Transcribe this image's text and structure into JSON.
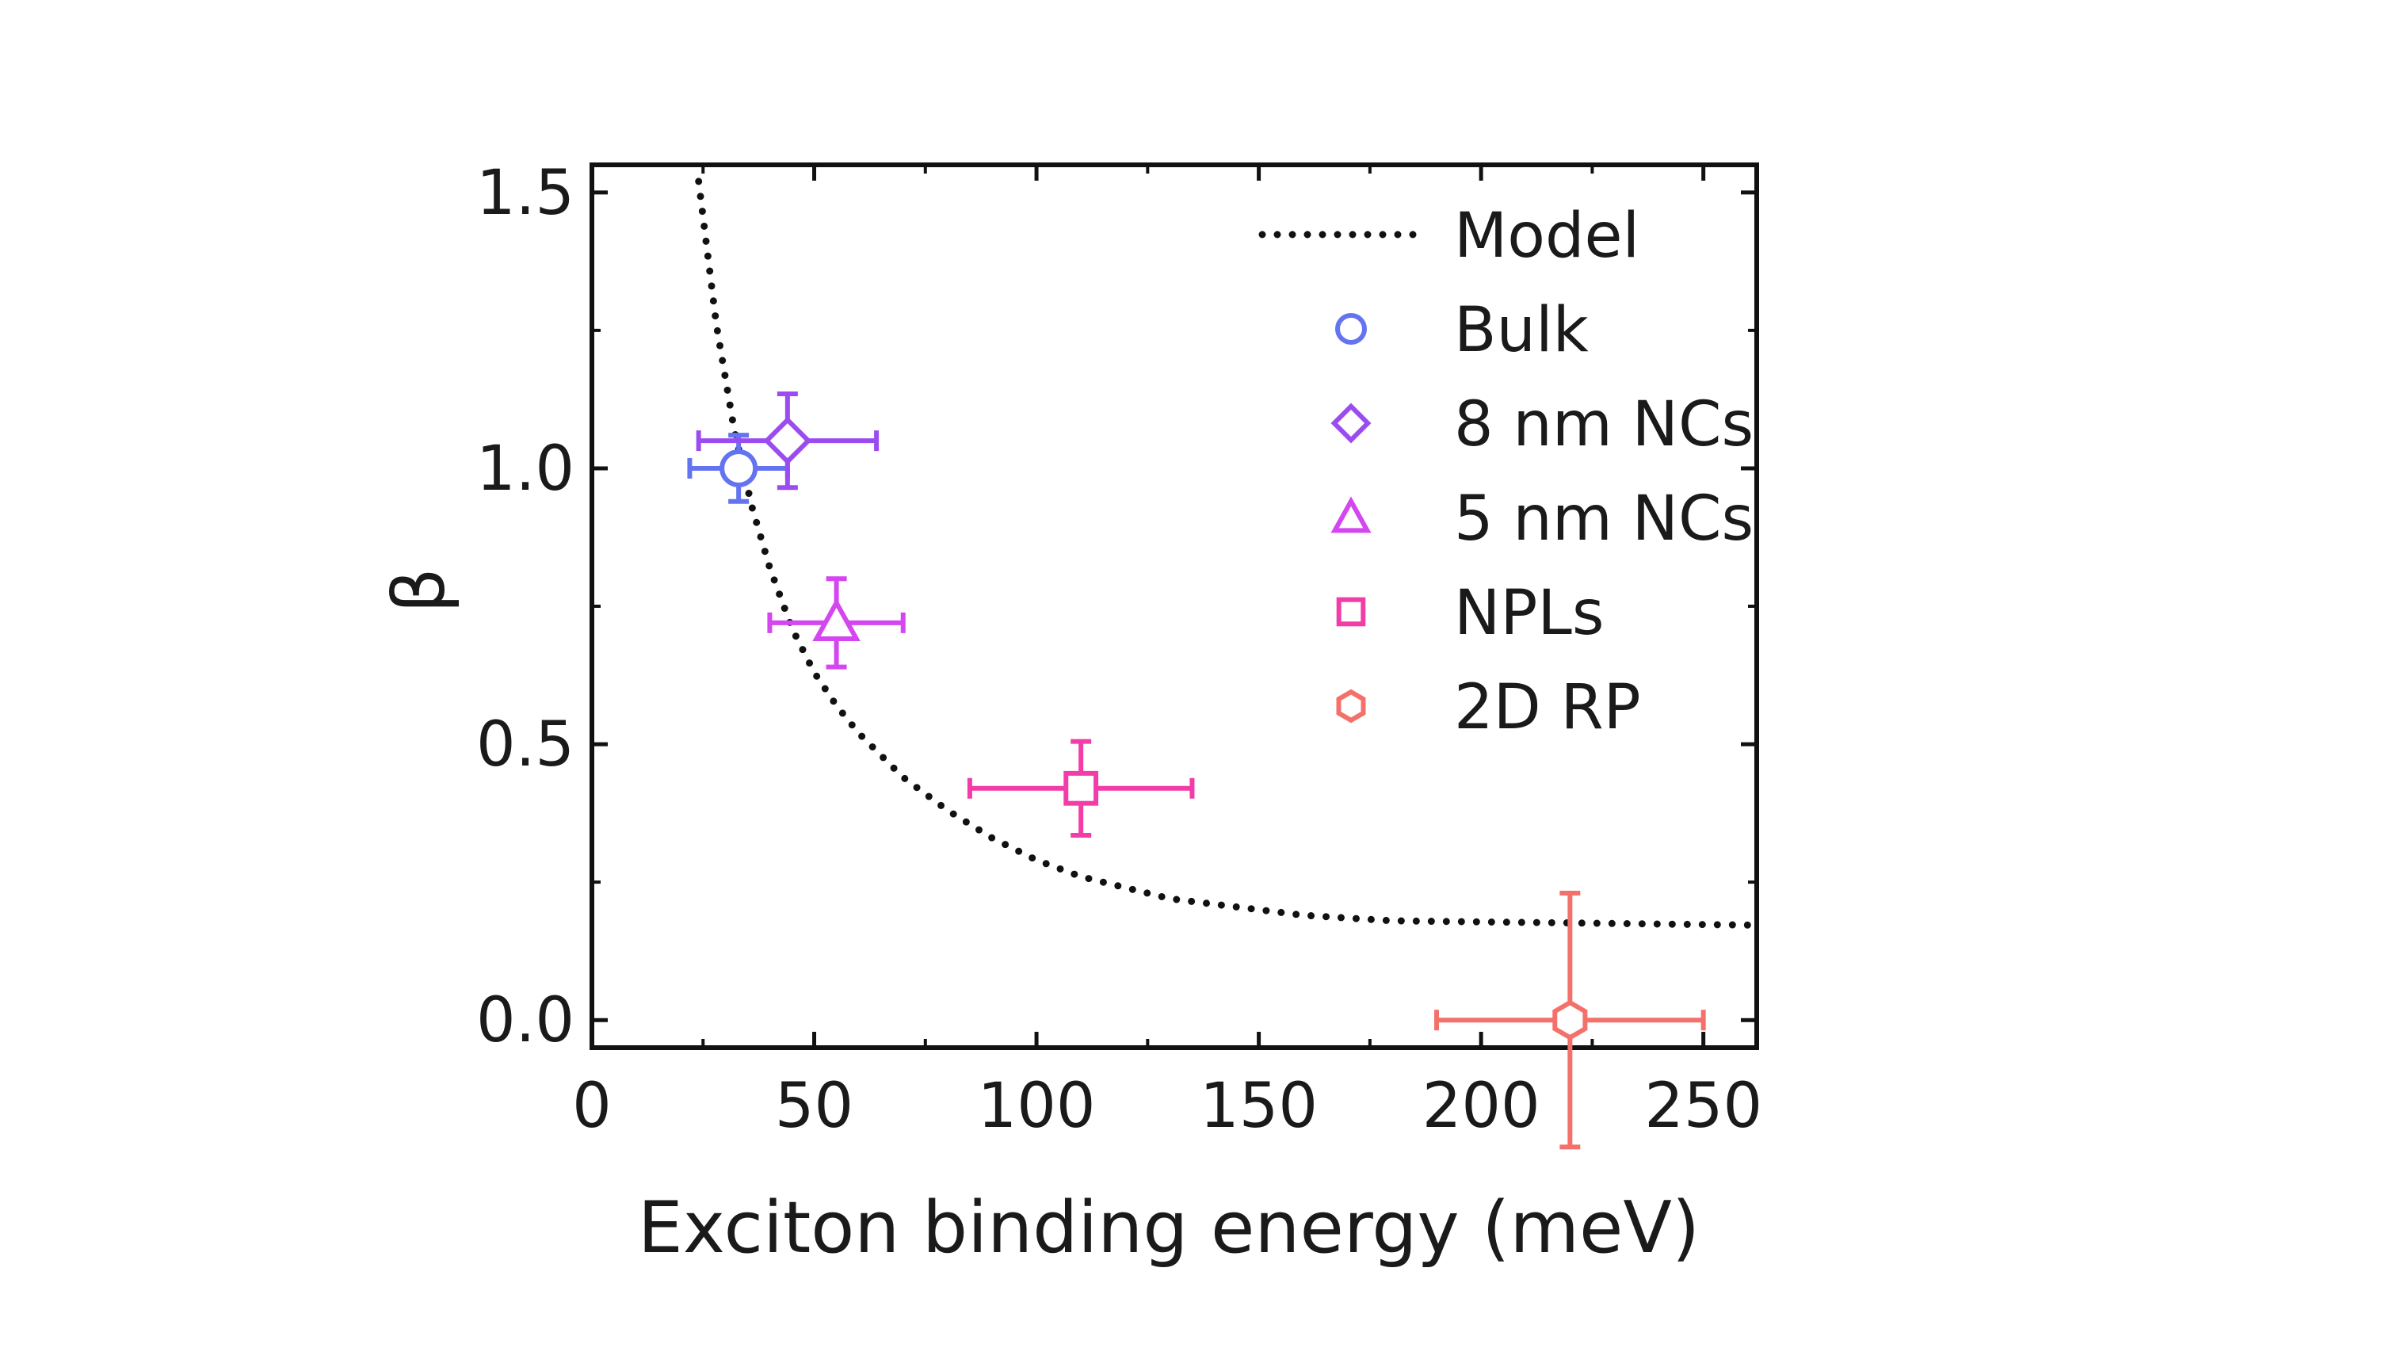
{
  "chart_data": {
    "type": "scatter",
    "title": "",
    "xlabel": "Exciton binding energy (meV)",
    "ylabel": "β",
    "xlim": [
      0,
      262
    ],
    "ylim": [
      -0.05,
      1.55
    ],
    "x_ticks": [
      0,
      50,
      100,
      150,
      200,
      250
    ],
    "x_tick_labels": [
      "0",
      "50",
      "100",
      "150",
      "200",
      "250"
    ],
    "y_ticks": [
      0.0,
      0.5,
      1.0,
      1.5
    ],
    "y_tick_labels": [
      "0.0",
      "0.5",
      "1.0",
      "1.5"
    ],
    "grid": false,
    "legend": {
      "placement": "top-right"
    },
    "model": {
      "name": "Model",
      "style": "dotted",
      "color": "#111111",
      "x": [
        24,
        28,
        32,
        36,
        40,
        45,
        50,
        55,
        60,
        70,
        80,
        90,
        100,
        110,
        120,
        130,
        140,
        150,
        160,
        170,
        180,
        200,
        220,
        240,
        262
      ],
      "y": [
        1.52,
        1.26,
        1.07,
        0.93,
        0.82,
        0.71,
        0.63,
        0.57,
        0.52,
        0.44,
        0.38,
        0.33,
        0.29,
        0.26,
        0.24,
        0.22,
        0.21,
        0.2,
        0.19,
        0.185,
        0.18,
        0.178,
        0.176,
        0.174,
        0.172
      ]
    },
    "series": [
      {
        "name": "Bulk",
        "marker": "circle",
        "color": "#6474f0",
        "x": 33,
        "y": 1.0,
        "xerr": 11,
        "yerr": 0.06
      },
      {
        "name": "8 nm NCs",
        "marker": "diamond",
        "color": "#9b4cf0",
        "x": 44,
        "y": 1.05,
        "xerr": 20,
        "yerr": 0.085
      },
      {
        "name": "5 nm NCs",
        "marker": "triangle",
        "color": "#d447f0",
        "x": 55,
        "y": 0.72,
        "xerr": 15,
        "yerr": 0.08
      },
      {
        "name": "NPLs",
        "marker": "square",
        "color": "#f23ca8",
        "x": 110,
        "y": 0.42,
        "xerr": 25,
        "yerr": 0.085
      },
      {
        "name": "2D RP",
        "marker": "hexagon",
        "color": "#f4706a",
        "x": 220,
        "y": 0.0,
        "xerr": 30,
        "yerr": 0.23
      }
    ]
  }
}
